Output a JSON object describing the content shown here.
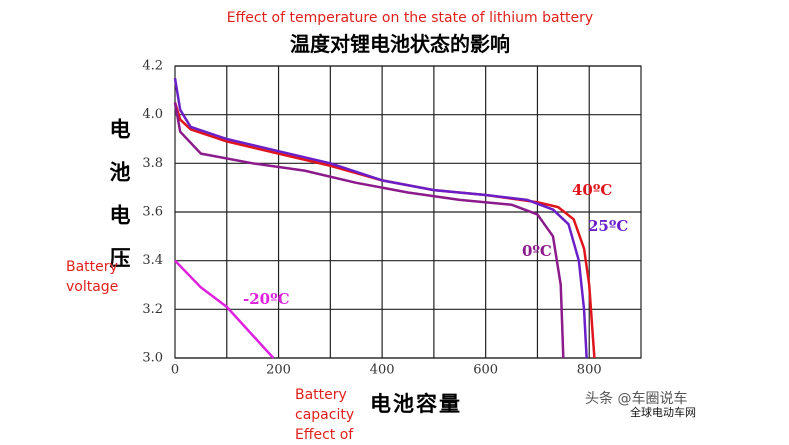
{
  "chart_data": {
    "type": "line",
    "annotation_title": "Effect of temperature on the state of lithium battery",
    "title": "温度对锂电池状态的影响",
    "y_label": "电池电压",
    "y_label_translation": "Battery voltage",
    "x_label": "电池容量",
    "x_label_translation": "Battery capacity Effect of",
    "watermark": "头条 @车圈说车",
    "watermark_site": "全球电动车网",
    "xlim": [
      0,
      900
    ],
    "ylim": [
      3.0,
      4.2
    ],
    "xticks": [
      0,
      200,
      400,
      600,
      800
    ],
    "xgrid": [
      100,
      200,
      300,
      400,
      500,
      600,
      700,
      800
    ],
    "yticks": [
      {
        "value": 3.0,
        "label": "3.0"
      },
      3.2,
      3.4,
      3.6,
      3.8,
      {
        "value": 4.0,
        "label": "4.0"
      },
      4.2
    ],
    "grid": true,
    "series": [
      {
        "name": "40ºC",
        "color": "#e0141c",
        "x": [
          0,
          10,
          30,
          100,
          200,
          300,
          400,
          500,
          600,
          700,
          740,
          770,
          790,
          800,
          810
        ],
        "values": [
          4.05,
          3.98,
          3.94,
          3.89,
          3.84,
          3.79,
          3.73,
          3.69,
          3.67,
          3.64,
          3.62,
          3.57,
          3.45,
          3.3,
          3.0
        ]
      },
      {
        "name": "25ºC",
        "color": "#6a1fc8",
        "x": [
          0,
          10,
          30,
          100,
          200,
          300,
          400,
          500,
          600,
          680,
          730,
          760,
          780,
          790,
          795
        ],
        "values": [
          4.15,
          4.02,
          3.95,
          3.9,
          3.85,
          3.8,
          3.73,
          3.69,
          3.67,
          3.65,
          3.61,
          3.55,
          3.4,
          3.2,
          3.0
        ]
      },
      {
        "name": "0ºC",
        "color": "#8b1a8b",
        "x": [
          0,
          10,
          50,
          150,
          250,
          350,
          450,
          550,
          650,
          700,
          730,
          745,
          750
        ],
        "values": [
          4.05,
          3.93,
          3.84,
          3.8,
          3.77,
          3.72,
          3.68,
          3.65,
          3.63,
          3.59,
          3.5,
          3.3,
          3.0
        ]
      },
      {
        "name": "-20ºC",
        "color": "#e020e0",
        "x": [
          0,
          50,
          100,
          190
        ],
        "values": [
          3.4,
          3.29,
          3.21,
          3.0
        ]
      }
    ]
  }
}
